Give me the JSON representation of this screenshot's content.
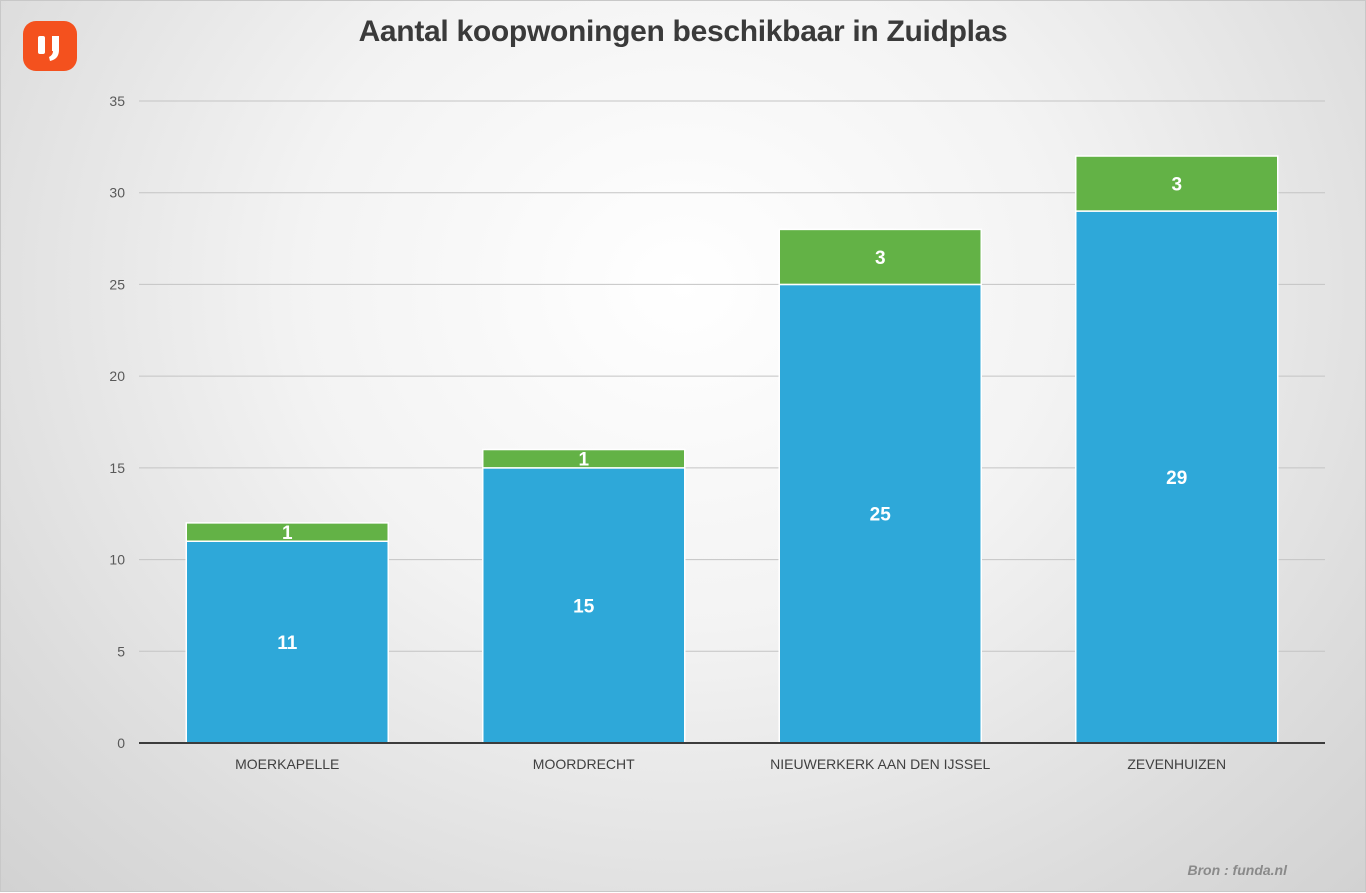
{
  "logo": {
    "color": "#f4511e",
    "icon": "funda-logo-icon"
  },
  "source": "Bron : funda.nl",
  "chart_data": {
    "type": "bar",
    "stacked": true,
    "title": "Aantal koopwoningen beschikbaar in Zuidplas",
    "xlabel": "",
    "ylabel": "",
    "categories": [
      "MOERKAPELLE",
      "MOORDRECHT",
      "NIEUWERKERK AAN DEN IJSSEL",
      "ZEVENHUIZEN"
    ],
    "series": [
      {
        "values": [
          11,
          15,
          25,
          29
        ],
        "color": "#2ea8d9"
      },
      {
        "values": [
          1,
          1,
          3,
          3
        ],
        "color": "#63b246"
      }
    ],
    "ylim": [
      0,
      35
    ],
    "yticks": [
      0,
      5,
      10,
      15,
      20,
      25,
      30,
      35
    ],
    "grid": true,
    "legend": "none"
  }
}
